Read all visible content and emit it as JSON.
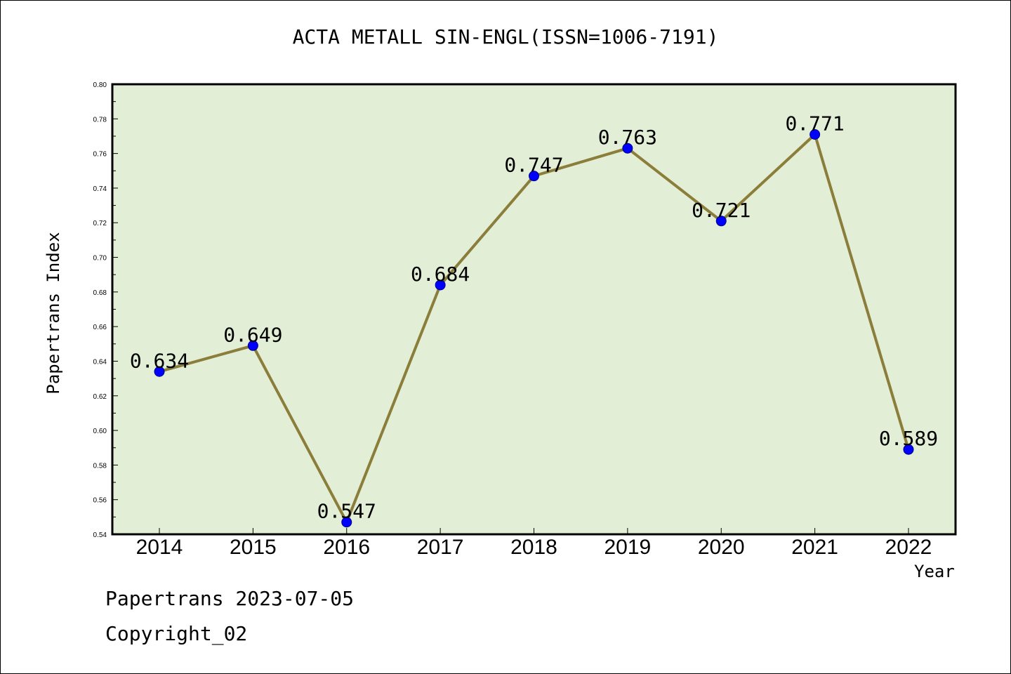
{
  "chart_data": {
    "type": "line",
    "title": "ACTA METALL SIN-ENGL(ISSN=1006-7191)",
    "xlabel": "Year",
    "ylabel": "Papertrans Index",
    "categories": [
      "2014",
      "2015",
      "2016",
      "2017",
      "2018",
      "2019",
      "2020",
      "2021",
      "2022"
    ],
    "series": [
      {
        "values": [
          0.634,
          0.649,
          0.547,
          0.684,
          0.747,
          0.763,
          0.721,
          0.771,
          0.589
        ],
        "data_labels": [
          "0.634",
          "0.649",
          "0.547",
          "0.684",
          "0.747",
          "0.763",
          "0.721",
          "0.771",
          "0.589"
        ],
        "line_color": "#8b7d3a",
        "marker_color": "#0000ff"
      }
    ],
    "ylim": [
      0.54,
      0.8
    ],
    "yticks": [
      "0.54",
      "0.56",
      "0.58",
      "0.60",
      "0.62",
      "0.64",
      "0.66",
      "0.68",
      "0.70",
      "0.72",
      "0.74",
      "0.76",
      "0.78",
      "0.80"
    ],
    "grid": false,
    "plot_background": "#e2efd6"
  },
  "footer": {
    "date_line": "Papertrans 2023-07-05",
    "copyright": "Copyright_02"
  }
}
